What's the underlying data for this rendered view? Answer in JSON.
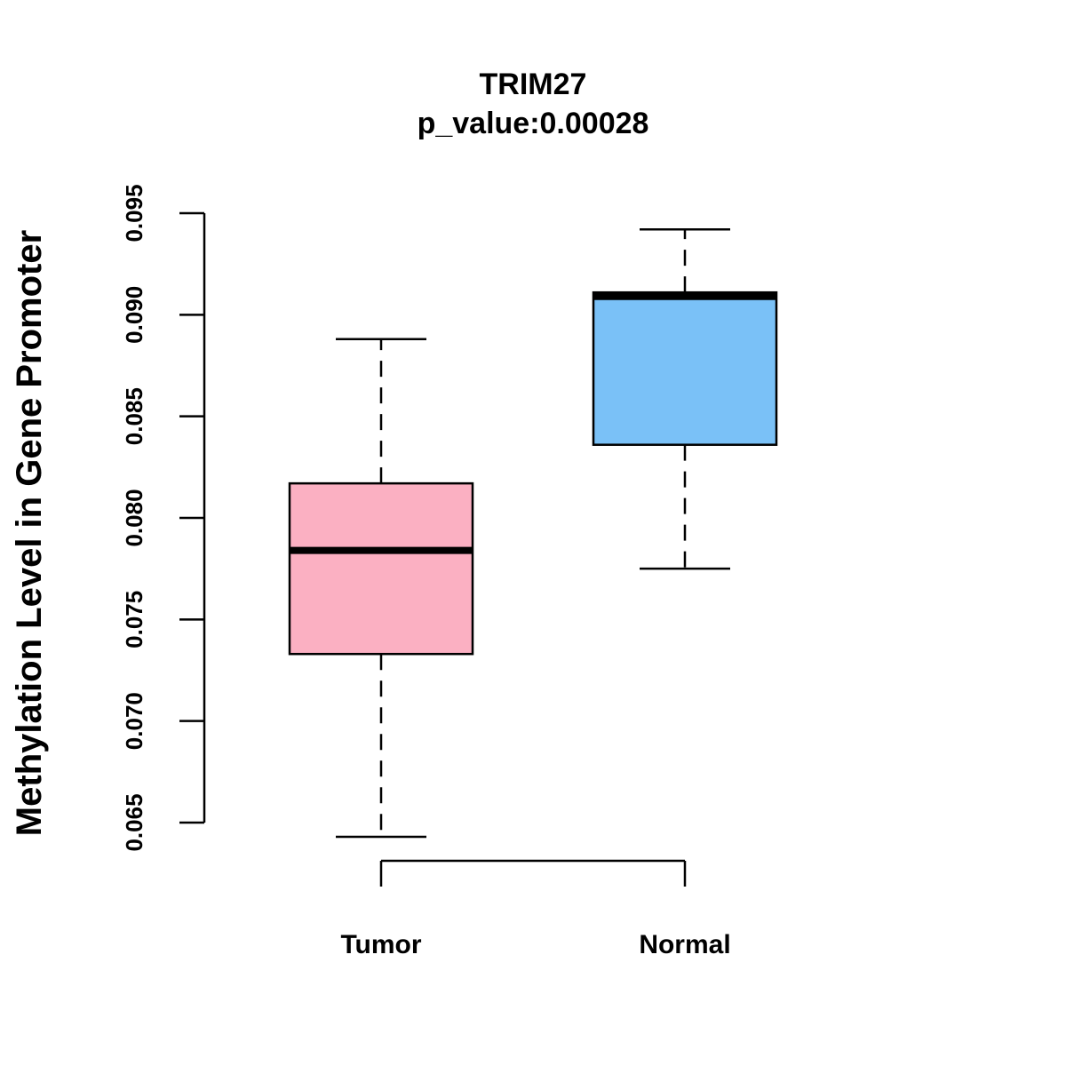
{
  "chart_data": {
    "type": "boxplot",
    "title": "TRIM27",
    "subtitle": "p_value:0.00028",
    "ylabel": "Methylation Level in Gene Promoter",
    "xlabel": "",
    "ylim": [
      0.065,
      0.095
    ],
    "y_ticks": [
      "0.065",
      "0.070",
      "0.075",
      "0.080",
      "0.085",
      "0.090",
      "0.095"
    ],
    "y_tick_values": [
      0.065,
      0.07,
      0.075,
      0.08,
      0.085,
      0.09,
      0.095
    ],
    "categories": [
      "Tumor",
      "Normal"
    ],
    "boxes": [
      {
        "name": "Tumor",
        "min": 0.0643,
        "q1": 0.0733,
        "median": 0.0784,
        "q3": 0.0817,
        "max": 0.0888,
        "color": "#FBB0C2"
      },
      {
        "name": "Normal",
        "min": 0.0775,
        "q1": 0.0836,
        "median": 0.0909,
        "q3": 0.0911,
        "max": 0.0942,
        "color": "#7AC1F7"
      }
    ],
    "grid": false,
    "legend": "none"
  }
}
